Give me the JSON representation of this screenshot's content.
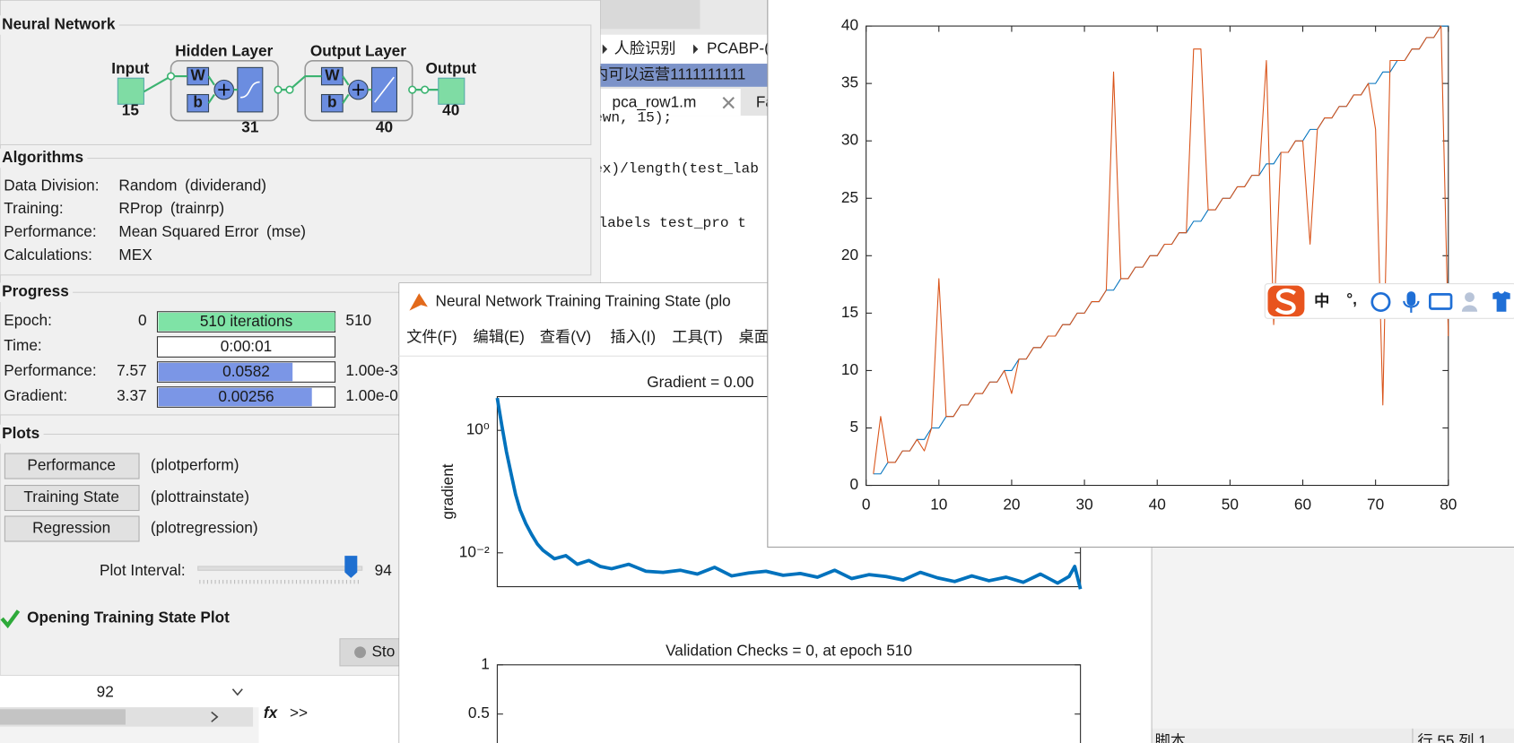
{
  "editor": {
    "breadcrumb": [
      "人脸识别",
      "PCABP-("
    ],
    "selected_text": "内可以运营1111111111",
    "tabs": [
      "pca_row1.m",
      "Fa"
    ],
    "code_lines": [
      "ewn, 15);",
      "ex)/length(test_lab",
      "labels  test_pro  t"
    ],
    "workspace_value": "92",
    "command_icon": "fx",
    "command_prompt": ">>",
    "status_left": "脚本",
    "status_right": "行 55  列 1"
  },
  "nntool": {
    "sections": [
      "Neural Network",
      "Algorithms",
      "Progress",
      "Plots"
    ],
    "diagram": {
      "input": "Input",
      "input_size": "15",
      "hidden_layer": "Hidden Layer",
      "hidden_size": "31",
      "output_layer": "Output Layer",
      "output_layer_size": "40",
      "output": "Output",
      "output_size": "40",
      "weight": "W",
      "bias": "b"
    },
    "algorithms": [
      {
        "label": "Data Division:",
        "value": "Random",
        "detail": "(dividerand)"
      },
      {
        "label": "Training:",
        "value": "RProp",
        "detail": "(trainrp)"
      },
      {
        "label": "Performance:",
        "value": "Mean Squared Error",
        "detail": "(mse)"
      },
      {
        "label": "Calculations:",
        "value": "MEX"
      }
    ],
    "progress": [
      {
        "label": "Epoch:",
        "start": "0",
        "current": "510 iterations",
        "end": "510"
      },
      {
        "label": "Time:",
        "current": "0:00:01"
      },
      {
        "label": "Performance:",
        "start": "7.57",
        "current": "0.0582",
        "end": "1.00e-3"
      },
      {
        "label": "Gradient:",
        "start": "3.37",
        "current": "0.00256",
        "end": "1.00e-0"
      }
    ],
    "plots": [
      {
        "button": "Performance",
        "function": "(plotperform)"
      },
      {
        "button": "Training State",
        "function": "(plottrainstate)"
      },
      {
        "button": "Regression",
        "function": "(plotregression)"
      }
    ],
    "plot_interval_label": "Plot Interval:",
    "plot_interval": "94",
    "status": "Opening Training State Plot",
    "stop_button": "Sto"
  },
  "training_window": {
    "title": "Neural Network Training Training State (plo",
    "menu": [
      "文件(F)",
      "编辑(E)",
      "查看(V)",
      "插入(I)",
      "工具(T)",
      "桌面"
    ]
  },
  "ime": {
    "mode": "中",
    "punctuation": "°,"
  },
  "chart_data": [
    {
      "type": "line",
      "xlim": [
        0,
        80
      ],
      "ylim": [
        0,
        40
      ],
      "xticks": [
        0,
        10,
        20,
        30,
        40,
        50,
        60,
        70,
        80
      ],
      "yticks": [
        0,
        5,
        10,
        15,
        20,
        25,
        30,
        35,
        40
      ],
      "x": [
        1,
        2,
        3,
        4,
        5,
        6,
        7,
        8,
        9,
        10,
        11,
        12,
        13,
        14,
        15,
        16,
        17,
        18,
        19,
        20,
        21,
        22,
        23,
        24,
        25,
        26,
        27,
        28,
        29,
        30,
        31,
        32,
        33,
        34,
        35,
        36,
        37,
        38,
        39,
        40,
        41,
        42,
        43,
        44,
        45,
        46,
        47,
        48,
        49,
        50,
        51,
        52,
        53,
        54,
        55,
        56,
        57,
        58,
        59,
        60,
        61,
        62,
        63,
        64,
        65,
        66,
        67,
        68,
        69,
        70,
        71,
        72,
        73,
        74,
        75,
        76,
        77,
        78,
        79,
        80
      ],
      "series": [
        {
          "color": "#0072bd",
          "values": [
            1,
            1,
            2,
            2,
            3,
            3,
            4,
            4,
            5,
            5,
            6,
            6,
            7,
            7,
            8,
            8,
            9,
            9,
            10,
            10,
            11,
            11,
            12,
            12,
            13,
            13,
            14,
            14,
            15,
            15,
            16,
            16,
            17,
            17,
            18,
            18,
            19,
            19,
            20,
            20,
            21,
            21,
            22,
            22,
            23,
            23,
            24,
            24,
            25,
            25,
            26,
            26,
            27,
            27,
            28,
            28,
            29,
            29,
            30,
            30,
            31,
            31,
            32,
            32,
            33,
            33,
            34,
            34,
            35,
            35,
            36,
            36,
            37,
            37,
            38,
            38,
            39,
            39,
            40,
            40
          ]
        },
        {
          "color": "#d95319",
          "values": [
            1,
            6,
            2,
            2,
            3,
            3,
            4,
            3,
            5,
            18,
            6,
            6,
            7,
            7,
            8,
            8,
            9,
            9,
            10,
            8,
            11,
            11,
            12,
            12,
            13,
            13,
            14,
            14,
            15,
            15,
            16,
            16,
            17,
            36,
            18,
            18,
            19,
            19,
            20,
            20,
            21,
            21,
            22,
            22,
            38,
            38,
            24,
            24,
            25,
            25,
            26,
            26,
            27,
            27,
            37,
            14,
            29,
            29,
            30,
            30,
            21,
            31,
            32,
            32,
            33,
            33,
            34,
            34,
            35,
            31,
            7,
            37,
            37,
            37,
            38,
            38,
            39,
            39,
            40,
            13
          ]
        }
      ]
    },
    {
      "type": "line",
      "title": "Gradient = 0.00",
      "ylabel": "gradient",
      "log_y": true,
      "xlim": [
        0,
        510
      ],
      "ylim": [
        0.0028,
        3.56
      ],
      "yticks": [
        {
          "value": 1,
          "label": "10⁰"
        },
        {
          "value": 0.01,
          "label": "10⁻²"
        }
      ],
      "x": [
        0,
        4,
        8,
        12,
        16,
        20,
        25,
        30,
        35,
        40,
        50,
        60,
        70,
        80,
        90,
        100,
        115,
        130,
        145,
        160,
        175,
        190,
        205,
        220,
        235,
        250,
        265,
        280,
        295,
        310,
        325,
        340,
        355,
        370,
        385,
        400,
        415,
        430,
        445,
        460,
        475,
        490,
        500,
        505,
        510
      ],
      "series": [
        {
          "color": "#0072bd",
          "values": [
            3.37,
            1.2,
            0.45,
            0.2,
            0.09,
            0.05,
            0.03,
            0.02,
            0.014,
            0.011,
            0.008,
            0.009,
            0.0065,
            0.0075,
            0.006,
            0.0055,
            0.0065,
            0.005,
            0.0048,
            0.0052,
            0.0045,
            0.0058,
            0.0042,
            0.0047,
            0.005,
            0.0043,
            0.0046,
            0.004,
            0.0052,
            0.0038,
            0.0044,
            0.0041,
            0.0036,
            0.0048,
            0.0039,
            0.0034,
            0.0042,
            0.0035,
            0.004,
            0.0033,
            0.0045,
            0.0032,
            0.0041,
            0.006,
            0.00256
          ]
        }
      ]
    },
    {
      "type": "line",
      "title": "Validation Checks = 0, at epoch 510",
      "xlim": [
        0,
        510
      ],
      "ylim": [
        0,
        1
      ],
      "yticks": [
        0.5,
        1
      ]
    }
  ]
}
